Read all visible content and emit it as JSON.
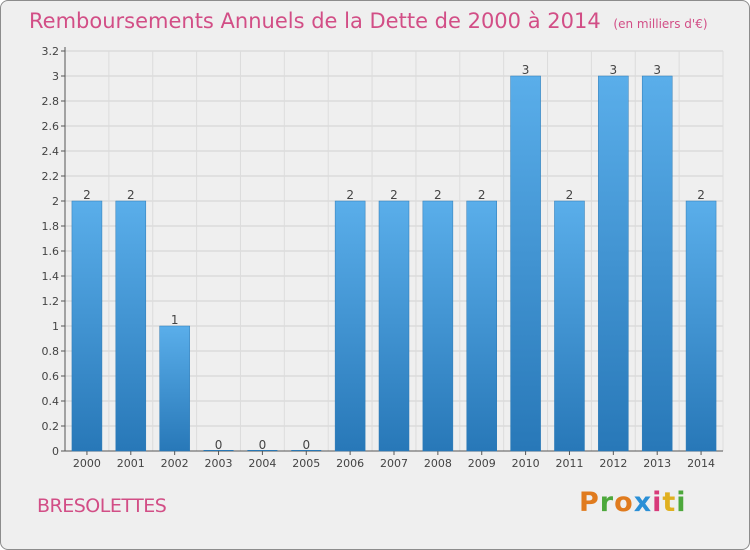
{
  "chart_data": {
    "type": "bar",
    "title": "Remboursements Annuels de la Dette de 2000 à 2014",
    "unit_note": "(en milliers d'€)",
    "categories": [
      "2000",
      "2001",
      "2002",
      "2003",
      "2004",
      "2005",
      "2006",
      "2007",
      "2008",
      "2009",
      "2010",
      "2011",
      "2012",
      "2013",
      "2014"
    ],
    "values": [
      2,
      2,
      1,
      0,
      0,
      0,
      2,
      2,
      2,
      2,
      3,
      2,
      3,
      3,
      2
    ],
    "value_labels": [
      "2",
      "2",
      "1",
      "0",
      "0",
      "0",
      "2",
      "2",
      "2",
      "2",
      "3",
      "2",
      "3",
      "3",
      "2"
    ],
    "ylim": [
      0,
      3.2
    ],
    "y_ticks": [
      "0",
      "0.2",
      "0.4",
      "0.6",
      "0.8",
      "1",
      "1.2",
      "1.4",
      "1.6",
      "1.8",
      "2",
      "2.2",
      "2.4",
      "2.6",
      "2.8",
      "3",
      "3.2"
    ],
    "y_tick_values": [
      0,
      0.2,
      0.4,
      0.6,
      0.8,
      1,
      1.2,
      1.4,
      1.6,
      1.8,
      2,
      2.2,
      2.4,
      2.6,
      2.8,
      3,
      3.2
    ],
    "grid": true,
    "bar_color": "#4aa0e0",
    "bar_color_dark": "#2f7fc0"
  },
  "commune": "BRESOLETTES",
  "brand": {
    "letters": [
      "P",
      "r",
      "o",
      "x",
      "i",
      "t",
      "i"
    ],
    "colors": [
      "#e07b1e",
      "#4da83c",
      "#e07b1e",
      "#2a8fd6",
      "#d83a7a",
      "#e0b020",
      "#4da83c"
    ]
  },
  "colors": {
    "title": "#d24e86",
    "background": "#efefef"
  }
}
